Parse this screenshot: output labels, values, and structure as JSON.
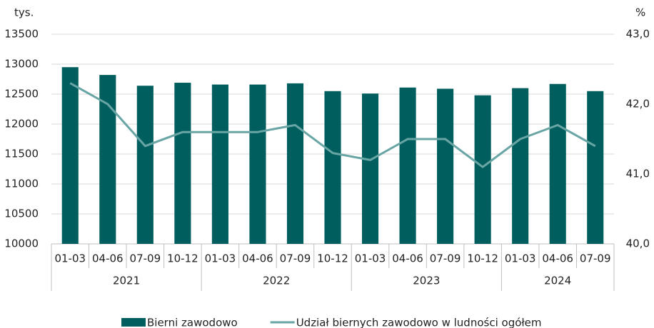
{
  "chart_data": {
    "type": "bar_line",
    "y_unit": "tys.",
    "y2_unit": "%",
    "category_groups": [
      {
        "label": "2021",
        "categories": [
          "01-03",
          "04-06",
          "07-09",
          "10-12"
        ]
      },
      {
        "label": "2022",
        "categories": [
          "01-03",
          "04-06",
          "07-09",
          "10-12"
        ]
      },
      {
        "label": "2023",
        "categories": [
          "01-03",
          "04-06",
          "07-09",
          "10-12"
        ]
      },
      {
        "label": "2024",
        "categories": [
          "01-03",
          "04-06",
          "07-09"
        ]
      }
    ],
    "series": [
      {
        "name": "Bierni zawodowo",
        "type": "bar",
        "color": "#005f5e",
        "values": [
          12950,
          12820,
          12640,
          12690,
          12660,
          12660,
          12680,
          12550,
          12510,
          12610,
          12590,
          12480,
          12600,
          12670,
          12550
        ]
      },
      {
        "name": "Udział biernych zawodowo w ludności ogółem",
        "type": "line",
        "axis": "y2",
        "color": "#68a5a4",
        "values": [
          42.3,
          42.0,
          41.4,
          41.6,
          41.6,
          41.6,
          41.7,
          41.3,
          41.2,
          41.5,
          41.5,
          41.1,
          41.5,
          41.7,
          41.4
        ]
      }
    ],
    "ylim": [
      10000,
      13500
    ],
    "yticks": [
      10000,
      10500,
      11000,
      11500,
      12000,
      12500,
      13000,
      13500
    ],
    "y2lim": [
      40,
      43
    ],
    "y2ticks": [
      {
        "value": 40,
        "label": "40,0"
      },
      {
        "value": 41,
        "label": "41,0"
      },
      {
        "value": 42,
        "label": "42,0"
      },
      {
        "value": 43,
        "label": "43,0"
      }
    ],
    "grid": true,
    "legend": "bottom"
  }
}
